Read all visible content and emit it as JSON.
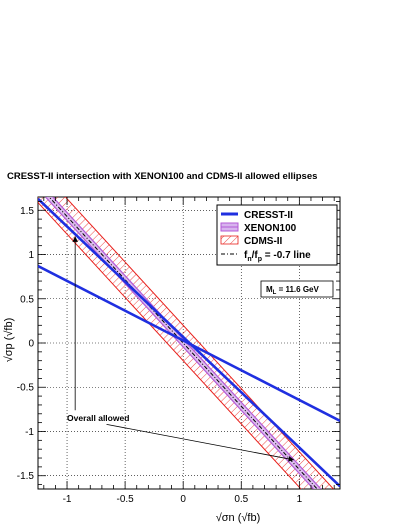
{
  "chart_data": {
    "type": "line",
    "title": "CRESST-II intersection with XENON100 and CDMS-II allowed ellipses",
    "xlabel": "√σn (√fb)",
    "ylabel": "√σp (√fb)",
    "xlim": [
      -1.25,
      1.35
    ],
    "ylim": [
      -1.65,
      1.65
    ],
    "xticks": [
      -1,
      -0.5,
      0,
      0.5,
      1
    ],
    "xtick_labels": [
      "-1",
      "-0.5",
      "0",
      "0.5",
      "1"
    ],
    "yticks": [
      -1.5,
      -1,
      -0.5,
      0,
      0.5,
      1,
      1.5
    ],
    "ytick_labels": [
      "-1.5",
      "-1",
      "-0.5",
      "0",
      "0.5",
      "1",
      "1.5"
    ],
    "grid": true,
    "legend_position": "top-right",
    "mass_label": "M",
    "mass_subscript": "L",
    "mass_value": " = 11.6 GeV",
    "series": [
      {
        "name": "CRESST-II",
        "style": "thick-line",
        "color": "#1f2fe0",
        "lines": [
          [
            [
              -1.25,
              1.63
            ],
            [
              1.35,
              -1.62
            ]
          ],
          [
            [
              -1.25,
              0.87
            ],
            [
              1.35,
              -0.88
            ]
          ]
        ]
      },
      {
        "name": "XENON100",
        "style": "filled-band",
        "color": "#b35ad6",
        "slope": -1.43,
        "half_width": 0.045,
        "x_range": [
          -1.18,
          1.25
        ]
      },
      {
        "name": "CDMS-II",
        "style": "hatched-band",
        "color": "#e8201c",
        "slope": -1.43,
        "half_width": 0.2,
        "x_range": [
          -1.25,
          1.35
        ]
      },
      {
        "name_main": "f",
        "name_sub1": "n",
        "name_mid": "/f",
        "name_sub2": "p",
        "name_tail": " = -0.7 line",
        "style": "dash-dot",
        "color": "#000000",
        "slope": -1.43,
        "x_range": [
          -1.18,
          1.25
        ]
      }
    ],
    "annotations": [
      {
        "text": "Overall allowed",
        "text_at": [
          -1.0,
          -0.88
        ],
        "arrows": [
          {
            "from": [
              -0.93,
              -0.76
            ],
            "to": [
              -0.93,
              1.2
            ]
          },
          {
            "from": [
              -0.66,
              -0.92
            ],
            "to": [
              0.95,
              -1.32
            ]
          }
        ]
      }
    ]
  }
}
